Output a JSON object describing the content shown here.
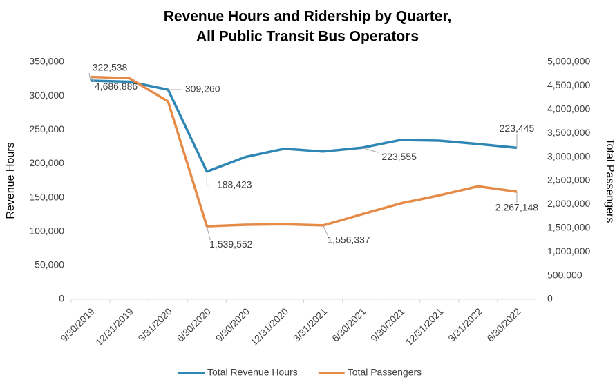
{
  "chart_data": {
    "type": "line",
    "title": [
      "Revenue Hours and Ridership by Quarter,",
      "All Public Transit Bus Operators"
    ],
    "y_label": "Revenue Hours",
    "y2_label": "Total Passengers",
    "categories": [
      "9/30/2019",
      "12/31/2019",
      "3/31/2020",
      "6/30/2020",
      "9/30/2020",
      "12/31/2020",
      "3/31/2021",
      "6/30/2021",
      "9/30/2021",
      "12/31/2021",
      "3/31/2022",
      "6/30/2022"
    ],
    "series": [
      {
        "name": "Total Revenue Hours",
        "color": "#2e86b5",
        "values": [
          322538,
          321000,
          309260,
          188423,
          210000,
          222000,
          218000,
          223555,
          235000,
          234000,
          229000,
          223445
        ],
        "value_labels": [
          "322,538",
          null,
          "309,260",
          "188,423",
          null,
          null,
          null,
          "223,555",
          null,
          null,
          null,
          "223,445"
        ]
      },
      {
        "name": "Total Passengers",
        "color": "#e58a47",
        "axis": "y2",
        "values": [
          4686886,
          4660000,
          4170000,
          1539552,
          1570000,
          1580000,
          1556337,
          1790000,
          2020000,
          2190000,
          2380000,
          2267148
        ],
        "value_labels": [
          "4,686,886",
          null,
          null,
          "1,539,552",
          null,
          null,
          "1,556,337",
          null,
          null,
          null,
          null,
          "2,267,148"
        ]
      }
    ],
    "ylim": [
      0,
      350000
    ],
    "yticks": [
      0,
      {
        "value": 50000,
        "label": "50,000"
      },
      {
        "value": 100000,
        "label": "100,000"
      },
      {
        "value": 150000,
        "label": "150,000"
      },
      {
        "value": 200000,
        "label": "200,000"
      },
      {
        "value": 250000,
        "label": "250,000"
      },
      {
        "value": 300000,
        "label": "300,000"
      },
      {
        "value": 350000,
        "label": "350,000"
      }
    ],
    "y2lim": [
      0,
      5000000
    ],
    "y2ticks": [
      0,
      {
        "value": 500000,
        "label": "500,000"
      },
      {
        "value": 1000000,
        "label": "1,000,000"
      },
      {
        "value": 1500000,
        "label": "1,500,000"
      },
      {
        "value": 2000000,
        "label": "2,000,000"
      },
      {
        "value": 2500000,
        "label": "2,500,000"
      },
      {
        "value": 3000000,
        "label": "3,000,000"
      },
      {
        "value": 3500000,
        "label": "3,500,000"
      },
      {
        "value": 4000000,
        "label": "4,000,000"
      },
      {
        "value": 4500000,
        "label": "4,500,000"
      },
      {
        "value": 5000000,
        "label": "5,000,000"
      }
    ],
    "legend": "bottom"
  }
}
